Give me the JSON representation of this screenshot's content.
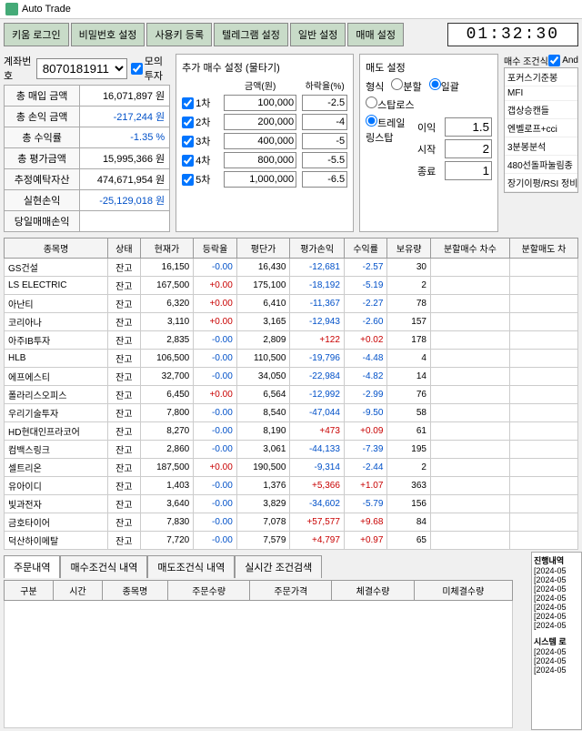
{
  "window": {
    "title": "Auto Trade"
  },
  "toolbar": {
    "b1": "키움 로그인",
    "b2": "비밀번호 설정",
    "b3": "사용키 등록",
    "b4": "텔레그램 설정",
    "b5": "일반 설정",
    "b6": "매매 설정"
  },
  "clock": "01:32:30",
  "account": {
    "label": "계좌번호",
    "value": "8070181911",
    "mock_label": "모의투자",
    "rows": [
      {
        "k": "총 매입 금액",
        "v": "16,071,897 원",
        "cls": ""
      },
      {
        "k": "총 손익 금액",
        "v": "-217,244 원",
        "cls": "neg"
      },
      {
        "k": "총 수익률",
        "v": "-1.35 %",
        "cls": "neg"
      },
      {
        "k": "총 평가금액",
        "v": "15,995,366 원",
        "cls": ""
      },
      {
        "k": "추정예탁자산",
        "v": "474,671,954 원",
        "cls": ""
      },
      {
        "k": "실현손익",
        "v": "-25,129,018 원",
        "cls": "neg"
      },
      {
        "k": "당일매매손익",
        "v": "",
        "cls": ""
      }
    ]
  },
  "buy": {
    "title": "추가 매수 설정 (물타기)",
    "col1": "금액(원)",
    "col2": "하락율(%)",
    "tiers": [
      {
        "n": "1차",
        "amt": "100,000",
        "pct": "-2.5"
      },
      {
        "n": "2차",
        "amt": "200,000",
        "pct": "-4"
      },
      {
        "n": "3차",
        "amt": "400,000",
        "pct": "-5"
      },
      {
        "n": "4차",
        "amt": "800,000",
        "pct": "-5.5"
      },
      {
        "n": "5차",
        "amt": "1,000,000",
        "pct": "-6.5"
      }
    ]
  },
  "sell": {
    "title": "매도 설정",
    "type_label": "형식",
    "r1": "분할",
    "r2": "일괄",
    "stoploss": "스탑로스",
    "trailing": "트레일링스탑",
    "f1": "이익",
    "v1": "1.5",
    "f2": "시작",
    "v2": "2",
    "f3": "종료",
    "v3": "1"
  },
  "cond": {
    "title": "매수 조건식",
    "and": "And",
    "items": [
      "포커스기준봉",
      "MFI",
      "갭상승캔들",
      "엔벨로프+cci",
      "3분봉분석",
      "480선돌파눌림종",
      "장기이평/RSI 정비"
    ]
  },
  "holdings": {
    "cols": [
      "종목명",
      "상태",
      "현재가",
      "등락율",
      "평단가",
      "평가손익",
      "수익률",
      "보유량",
      "분할매수 차수",
      "분할매도 차"
    ],
    "rows": [
      [
        "GS건설",
        "잔고",
        "16,150",
        "-0.00",
        "16,430",
        "-12,681",
        "-2.57",
        "30",
        "",
        ""
      ],
      [
        "LS ELECTRIC",
        "잔고",
        "167,500",
        "+0.00",
        "175,100",
        "-18,192",
        "-5.19",
        "2",
        "",
        ""
      ],
      [
        "아난티",
        "잔고",
        "6,320",
        "+0.00",
        "6,410",
        "-11,367",
        "-2.27",
        "78",
        "",
        ""
      ],
      [
        "코리아나",
        "잔고",
        "3,110",
        "+0.00",
        "3,165",
        "-12,943",
        "-2.60",
        "157",
        "",
        ""
      ],
      [
        "아주IB투자",
        "잔고",
        "2,835",
        "-0.00",
        "2,809",
        "+122",
        "+0.02",
        "178",
        "",
        ""
      ],
      [
        "HLB",
        "잔고",
        "106,500",
        "-0.00",
        "110,500",
        "-19,796",
        "-4.48",
        "4",
        "",
        ""
      ],
      [
        "에프에스티",
        "잔고",
        "32,700",
        "-0.00",
        "34,050",
        "-22,984",
        "-4.82",
        "14",
        "",
        ""
      ],
      [
        "폴라리스오피스",
        "잔고",
        "6,450",
        "+0.00",
        "6,564",
        "-12,992",
        "-2.99",
        "76",
        "",
        ""
      ],
      [
        "우리기술투자",
        "잔고",
        "7,800",
        "-0.00",
        "8,540",
        "-47,044",
        "-9.50",
        "58",
        "",
        ""
      ],
      [
        "HD현대인프라코어",
        "잔고",
        "8,270",
        "-0.00",
        "8,190",
        "+473",
        "+0.09",
        "61",
        "",
        ""
      ],
      [
        "컴백스링크",
        "잔고",
        "2,860",
        "-0.00",
        "3,061",
        "-44,133",
        "-7.39",
        "195",
        "",
        ""
      ],
      [
        "셀트리온",
        "잔고",
        "187,500",
        "+0.00",
        "190,500",
        "-9,314",
        "-2.44",
        "2",
        "",
        ""
      ],
      [
        "유아이디",
        "잔고",
        "1,403",
        "-0.00",
        "1,376",
        "+5,366",
        "+1.07",
        "363",
        "",
        ""
      ],
      [
        "빛과전자",
        "잔고",
        "3,640",
        "-0.00",
        "3,829",
        "-34,602",
        "-5.79",
        "156",
        "",
        ""
      ],
      [
        "금호타이어",
        "잔고",
        "7,830",
        "-0.00",
        "7,078",
        "+57,577",
        "+9.68",
        "84",
        "",
        ""
      ],
      [
        "덕산하이메탈",
        "잔고",
        "7,720",
        "-0.00",
        "7,579",
        "+4,797",
        "+0.97",
        "65",
        "",
        ""
      ]
    ]
  },
  "tabs": {
    "t1": "주문내역",
    "t2": "매수조건식 내역",
    "t3": "매도조건식 내역",
    "t4": "실시간 조건검색"
  },
  "orders": {
    "cols": [
      "구분",
      "시간",
      "종목명",
      "주문수량",
      "주문가격",
      "체결수량",
      "미체결수량"
    ]
  },
  "log": {
    "title": "진행내역",
    "lines": [
      "[2024-05",
      "[2024-05",
      "[2024-05",
      "[2024-05",
      "[2024-05",
      "[2024-05",
      "[2024-05"
    ],
    "sys": "시스템 로",
    "syslines": [
      "[2024-05",
      "[2024-05",
      "[2024-05"
    ]
  }
}
